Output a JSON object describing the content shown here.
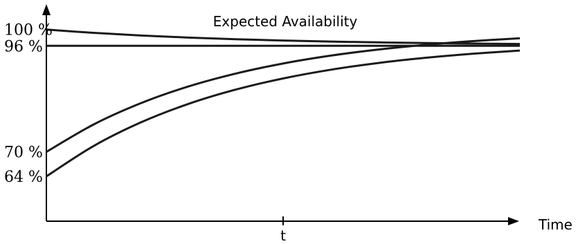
{
  "chart_data": {
    "type": "line",
    "title": "Expected Availability",
    "xlabel": "Time",
    "ylabel": "",
    "x_tick_labels": [
      {
        "x": 0.5,
        "label": "t"
      }
    ],
    "y_tick_labels": [
      {
        "y": 100,
        "label": "100 %"
      },
      {
        "y": 96,
        "label": "96 %"
      },
      {
        "y": 70,
        "label": "70 %"
      },
      {
        "y": 64,
        "label": "64 %"
      }
    ],
    "xlim": [
      0,
      1
    ],
    "ylim": [
      53,
      103
    ],
    "grid": false,
    "legend": "none",
    "series": [
      {
        "values": [
          [
            0,
            100
          ],
          [
            0.1,
            99.18
          ],
          [
            0.2,
            98.53
          ],
          [
            0.3,
            98.03
          ],
          [
            0.4,
            97.62
          ],
          [
            0.5,
            97.3
          ],
          [
            0.6,
            97.04
          ],
          [
            0.7,
            96.85
          ],
          [
            0.8,
            96.68
          ],
          [
            0.9,
            96.56
          ],
          [
            1.0,
            96.45
          ]
        ]
      },
      {
        "values": [
          [
            0,
            96
          ],
          [
            1.0,
            96
          ]
        ]
      },
      {
        "values": [
          [
            0,
            70
          ],
          [
            0.1,
            76.73
          ],
          [
            0.2,
            81.96
          ],
          [
            0.3,
            86.04
          ],
          [
            0.4,
            89.2
          ],
          [
            0.5,
            91.67
          ],
          [
            0.6,
            93.59
          ],
          [
            0.7,
            95.08
          ],
          [
            0.8,
            96.25
          ],
          [
            0.9,
            97.15
          ],
          [
            1.0,
            97.85
          ]
        ]
      },
      {
        "values": [
          [
            0,
            64
          ],
          [
            0.1,
            71.45
          ],
          [
            0.2,
            77.25
          ],
          [
            0.3,
            81.76
          ],
          [
            0.4,
            85.27
          ],
          [
            0.5,
            88.0
          ],
          [
            0.6,
            90.13
          ],
          [
            0.7,
            91.78
          ],
          [
            0.8,
            93.06
          ],
          [
            0.9,
            94.06
          ],
          [
            1.0,
            94.84
          ]
        ]
      }
    ]
  }
}
